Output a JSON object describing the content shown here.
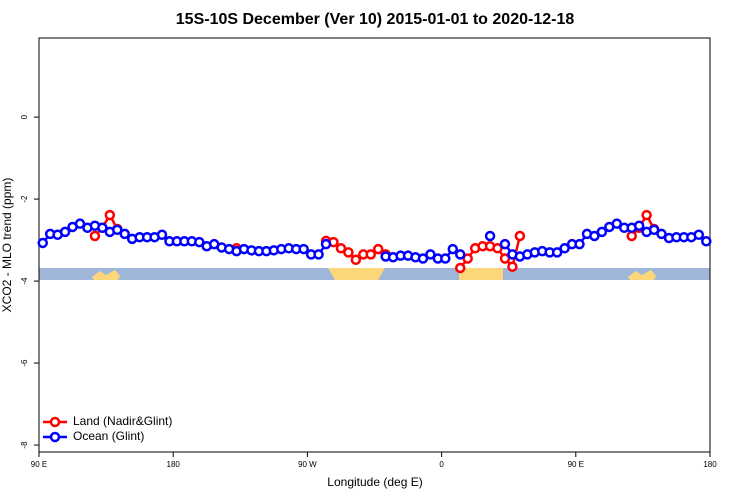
{
  "chart_data": {
    "type": "line",
    "title": "15S-10S December (Ver 10)   2015-01-01 to 2020-12-18",
    "x_label": "Longitude (deg E)",
    "y_label": "XCO2 - MLO trend (ppm)",
    "x": [
      92.5,
      97.5,
      102.5,
      107.5,
      112.5,
      117.5,
      122.5,
      127.5,
      132.5,
      137.5,
      142.5,
      147.5,
      152.5,
      157.5,
      162.5,
      167.5,
      172.5,
      177.5,
      182.5,
      187.5,
      192.5,
      197.5,
      202.5,
      207.5,
      212.5,
      217.5,
      222.5,
      227.5,
      232.5,
      237.5,
      242.5,
      247.5,
      252.5,
      257.5,
      262.5,
      267.5,
      272.5,
      277.5,
      282.5,
      287.5,
      292.5,
      297.5,
      302.5,
      307.5,
      312.5,
      317.5,
      322.5,
      327.5,
      332.5,
      337.5,
      342.5,
      347.5,
      352.5,
      357.5,
      362.5,
      367.5,
      372.5,
      377.5,
      382.5,
      387.5,
      392.5,
      397.5,
      402.5,
      407.5,
      412.5,
      417.5,
      422.5,
      427.5,
      432.5,
      437.5,
      442.5,
      447.5,
      452.5,
      457.5,
      462.5,
      467.5,
      472.5,
      477.5,
      482.5,
      487.5,
      492.5,
      497.5,
      502.5,
      507.5,
      512.5,
      517.5,
      522.5,
      527.5,
      532.5,
      537.5
    ],
    "series": [
      {
        "name": "Land (Nadir&Glint)",
        "color": "#ff0000",
        "values": [
          null,
          null,
          null,
          null,
          null,
          null,
          null,
          -2.9,
          -2.7,
          -2.39,
          -2.73,
          null,
          null,
          null,
          null,
          null,
          null,
          null,
          null,
          null,
          null,
          null,
          null,
          null,
          null,
          null,
          -3.2,
          null,
          null,
          null,
          null,
          null,
          null,
          null,
          null,
          null,
          null,
          null,
          -3.02,
          -3.05,
          -3.2,
          -3.3,
          -3.48,
          -3.35,
          -3.35,
          -3.22,
          -3.35,
          null,
          null,
          null,
          null,
          null,
          null,
          null,
          null,
          null,
          -3.68,
          -3.45,
          -3.2,
          -3.15,
          -3.15,
          -3.2,
          -3.45,
          -3.65,
          -2.9,
          null,
          null,
          null,
          null,
          null,
          null,
          null,
          null,
          null,
          null,
          null,
          null,
          null,
          null,
          -2.9,
          -2.7,
          -2.39,
          -2.73,
          null,
          null,
          null,
          null,
          null,
          null,
          null
        ]
      },
      {
        "name": "Ocean (Glint)",
        "color": "#0000ff",
        "values": [
          -3.07,
          -2.85,
          -2.87,
          -2.8,
          -2.68,
          -2.6,
          -2.7,
          -2.65,
          -2.7,
          -2.8,
          -2.75,
          -2.85,
          -2.97,
          -2.93,
          -2.93,
          -2.93,
          -2.87,
          -3.03,
          -3.03,
          -3.03,
          -3.03,
          -3.05,
          -3.15,
          -3.1,
          -3.18,
          -3.22,
          -3.27,
          -3.22,
          -3.25,
          -3.27,
          -3.27,
          -3.25,
          -3.22,
          -3.2,
          -3.22,
          -3.22,
          -3.35,
          -3.35,
          -3.1,
          null,
          null,
          null,
          null,
          null,
          null,
          null,
          -3.4,
          -3.42,
          -3.38,
          -3.38,
          -3.42,
          -3.45,
          -3.35,
          -3.45,
          -3.45,
          -3.22,
          -3.35,
          null,
          null,
          null,
          -2.9,
          null,
          -3.1,
          -3.35,
          -3.4,
          -3.35,
          -3.3,
          -3.27,
          -3.3,
          -3.3,
          -3.2,
          -3.1,
          -3.1,
          -2.85,
          -2.9,
          -2.8,
          -2.68,
          -2.6,
          -2.7,
          -2.7,
          -2.65,
          -2.8,
          -2.75,
          -2.85,
          -2.95,
          -2.93,
          -2.93,
          -2.93,
          -2.87,
          -3.03
        ]
      }
    ],
    "xlim": [
      90,
      540
    ],
    "xticks": [
      {
        "value": 90,
        "label": "90 E"
      },
      180,
      {
        "value": 270,
        "label": "90 W"
      },
      {
        "value": 360,
        "label": "0"
      },
      {
        "value": 450,
        "label": "90 E"
      },
      {
        "value": 540,
        "label": "180"
      }
    ],
    "ylim": [
      -8.17,
      1.93
    ],
    "yticks": [
      0,
      -2,
      -4,
      -6,
      -8
    ],
    "legend": "bottom-left"
  }
}
